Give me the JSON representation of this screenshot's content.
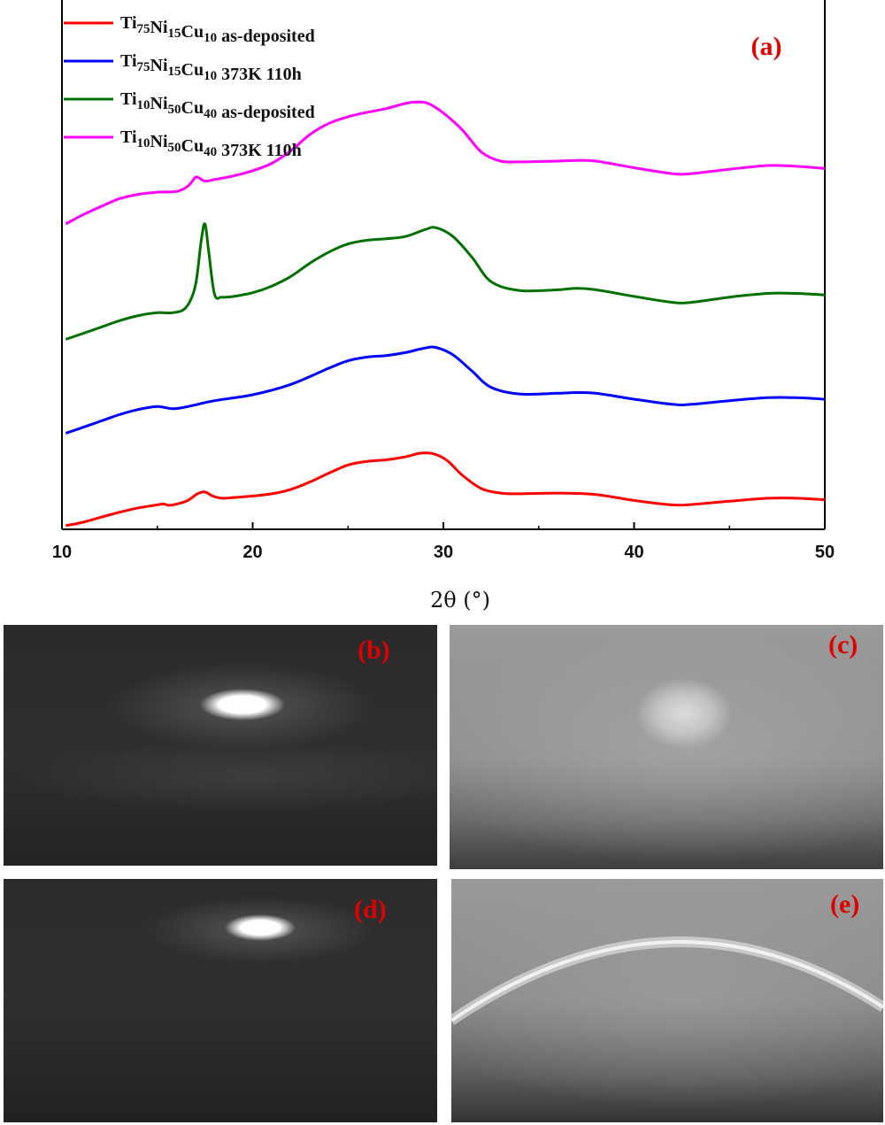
{
  "chart_data": {
    "type": "line",
    "panel_label": "(a)",
    "xlabel": "2θ (°)",
    "ylabel": "",
    "xlim": [
      10,
      50
    ],
    "xticks": [
      "10",
      "20",
      "30",
      "40",
      "50"
    ],
    "y_ticks_shown": false,
    "legend_position": "top-left",
    "series": [
      {
        "name": "Ti75Ni15Cu10 as-deposited",
        "legend": {
          "parts": [
            [
              "Ti",
              ""
            ],
            [
              "75",
              "sub"
            ],
            [
              "Ni",
              ""
            ],
            [
              "15",
              "sub"
            ],
            [
              "Cu",
              ""
            ],
            [
              "10",
              "sub"
            ],
            [
              " as-deposited",
              ""
            ]
          ]
        },
        "color": "#ff0000",
        "x": [
          10.2,
          11,
          12,
          13,
          14,
          15,
          15.3,
          15.6,
          16,
          16.6,
          17.1,
          17.5,
          17.9,
          18.4,
          19,
          20,
          21,
          22,
          23,
          24,
          25,
          26,
          27,
          28,
          28.8,
          29.5,
          30.2,
          31,
          32,
          33,
          34,
          36,
          38,
          40,
          42,
          43,
          45,
          47,
          48.5,
          50
        ],
        "y": [
          0.5,
          0.9,
          1.6,
          2.3,
          2.9,
          3.3,
          3.45,
          3.25,
          3.4,
          3.9,
          4.8,
          5.05,
          4.5,
          4.2,
          4.3,
          4.5,
          4.8,
          5.4,
          6.4,
          7.6,
          8.7,
          9.2,
          9.4,
          9.8,
          10.3,
          10.2,
          9.3,
          7.3,
          5.5,
          4.9,
          4.8,
          4.9,
          4.7,
          3.9,
          3.3,
          3.35,
          3.8,
          4.2,
          4.2,
          4.0
        ]
      },
      {
        "name": "Ti75Ni15Cu10 373K 110h",
        "legend": {
          "parts": [
            [
              "Ti",
              ""
            ],
            [
              "75",
              "sub"
            ],
            [
              "Ni",
              ""
            ],
            [
              "15",
              "sub"
            ],
            [
              "Cu",
              ""
            ],
            [
              "10",
              "sub"
            ],
            [
              " 373K 110h",
              ""
            ]
          ]
        },
        "color": "#0000ff",
        "x": [
          10.2,
          11,
          12,
          13,
          14,
          15,
          15.8,
          16.6,
          18,
          20,
          22,
          24,
          25,
          26,
          27,
          28,
          29,
          29.6,
          30.5,
          31.5,
          32.5,
          34,
          36,
          37,
          38,
          40,
          42,
          43,
          45,
          47,
          48.5,
          50
        ],
        "y": [
          13.0,
          13.7,
          14.6,
          15.5,
          16.2,
          16.6,
          16.3,
          16.6,
          17.4,
          18.2,
          19.6,
          21.8,
          22.8,
          23.3,
          23.5,
          23.9,
          24.5,
          24.6,
          23.6,
          21.4,
          19.2,
          18.3,
          18.4,
          18.5,
          18.4,
          17.6,
          16.9,
          16.9,
          17.4,
          17.8,
          17.8,
          17.6
        ]
      },
      {
        "name": "Ti10Ni50Cu40 as-deposited",
        "legend": {
          "parts": [
            [
              "Ti",
              ""
            ],
            [
              "10",
              "sub"
            ],
            [
              "Ni",
              ""
            ],
            [
              "50",
              "sub"
            ],
            [
              "Cu",
              ""
            ],
            [
              "40",
              "sub"
            ],
            [
              " as-deposited",
              ""
            ]
          ]
        },
        "color": "#007000",
        "x": [
          10.2,
          11,
          12,
          13,
          14,
          15,
          15.8,
          16.5,
          17,
          17.3,
          17.5,
          17.7,
          18.0,
          18.4,
          19,
          20,
          21,
          22,
          23,
          24,
          25,
          26,
          27,
          28,
          29,
          29.6,
          30.5,
          31.5,
          32.5,
          34,
          36,
          37,
          38,
          40,
          42,
          43,
          45,
          47,
          48.5,
          50
        ],
        "y": [
          25.7,
          26.4,
          27.3,
          28.2,
          28.9,
          29.3,
          29.3,
          30.0,
          33.0,
          39.0,
          41.3,
          37.5,
          31.8,
          31.4,
          31.5,
          32.0,
          32.9,
          34.2,
          36.0,
          37.5,
          38.6,
          39.1,
          39.3,
          39.6,
          40.5,
          40.8,
          39.6,
          36.8,
          33.5,
          32.3,
          32.4,
          32.6,
          32.4,
          31.5,
          30.7,
          30.7,
          31.4,
          31.9,
          31.9,
          31.7
        ]
      },
      {
        "name": "Ti10Ni50Cu40 373K 110h",
        "legend": {
          "parts": [
            [
              "Ti",
              ""
            ],
            [
              "10",
              "sub"
            ],
            [
              "Ni",
              ""
            ],
            [
              "50",
              "sub"
            ],
            [
              "Cu",
              ""
            ],
            [
              "40",
              "sub"
            ],
            [
              " 373K 110h",
              ""
            ]
          ]
        },
        "color": "#ff00ff",
        "x": [
          10.2,
          11,
          12,
          13,
          14,
          15,
          16,
          16.6,
          17.0,
          17.2,
          17.5,
          18,
          19,
          20,
          21,
          22,
          23,
          24,
          25,
          26,
          27,
          28,
          28.6,
          29.2,
          30,
          31,
          32,
          33,
          34,
          36,
          37,
          38,
          40,
          42,
          43,
          45,
          47,
          48.5,
          50
        ],
        "y": [
          41.3,
          42.4,
          43.6,
          44.7,
          45.3,
          45.6,
          45.7,
          46.4,
          47.6,
          47.5,
          47.1,
          47.3,
          47.8,
          48.5,
          49.5,
          51.2,
          53.4,
          54.9,
          55.8,
          56.4,
          56.9,
          57.6,
          57.8,
          57.6,
          56.3,
          54.0,
          51.0,
          49.8,
          49.7,
          49.8,
          49.9,
          49.8,
          48.9,
          48.1,
          48.1,
          48.7,
          49.2,
          49.1,
          48.8
        ]
      }
    ],
    "ylim": [
      0,
      68
    ]
  },
  "panels": {
    "b_label": "(b)",
    "c_label": "(c)",
    "d_label": "(d)",
    "e_label": "(e)"
  }
}
